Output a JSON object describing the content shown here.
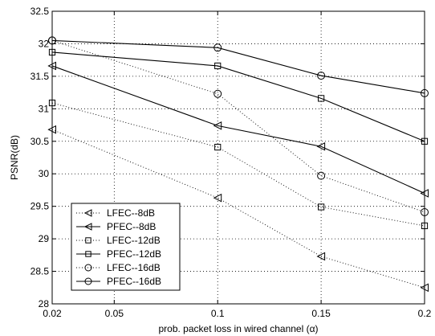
{
  "chart_data": {
    "type": "line",
    "xlabel": "prob. packet loss in wired channel (α)",
    "ylabel": "PSNR(dB)",
    "xlim": [
      0.02,
      0.2
    ],
    "ylim": [
      28,
      32.5
    ],
    "xticks": [
      0.02,
      0.05,
      0.1,
      0.15,
      0.2
    ],
    "xtick_labels": [
      "0.02",
      "0.05",
      "0.1",
      "0.15",
      "0.2"
    ],
    "yticks": [
      28,
      28.5,
      29,
      29.5,
      30,
      30.5,
      31,
      31.5,
      32,
      32.5
    ],
    "ytick_labels": [
      "28",
      "28.5",
      "29",
      "29.5",
      "30",
      "30.5",
      "31",
      "31.5",
      "32",
      "32.5"
    ],
    "grid": true,
    "legend_position": "bottom-left",
    "x": [
      0.02,
      0.1,
      0.15,
      0.2
    ],
    "series": [
      {
        "name": "LFEC--8dB",
        "marker": "triangle-left",
        "line": "dotted",
        "values": [
          30.68,
          29.63,
          28.73,
          28.25
        ]
      },
      {
        "name": "PFEC--8dB",
        "marker": "triangle-left",
        "line": "solid",
        "values": [
          31.66,
          30.74,
          30.42,
          29.7
        ]
      },
      {
        "name": "LFEC--12dB",
        "marker": "square",
        "line": "dotted",
        "values": [
          31.09,
          30.41,
          29.49,
          29.2
        ]
      },
      {
        "name": "PFEC--12dB",
        "marker": "square",
        "line": "solid",
        "values": [
          31.87,
          31.66,
          31.16,
          30.5
        ]
      },
      {
        "name": "LFEC--16dB",
        "marker": "circle",
        "line": "dotted",
        "values": [
          32.05,
          31.23,
          29.97,
          29.41
        ]
      },
      {
        "name": "PFEC--16dB",
        "marker": "circle",
        "line": "solid",
        "values": [
          32.05,
          31.94,
          31.51,
          31.24
        ]
      }
    ]
  }
}
